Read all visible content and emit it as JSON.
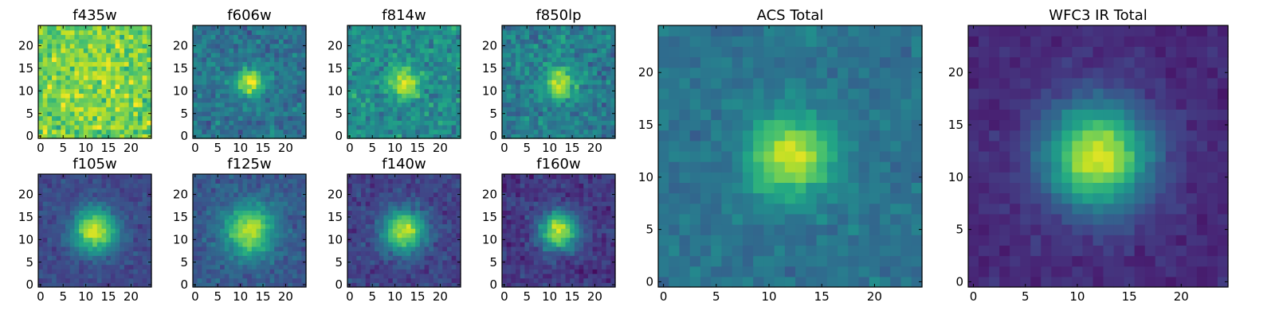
{
  "figure": {
    "description_free": true
  },
  "chart_data": [
    {
      "type": "heatmap",
      "title": "f435w",
      "xlim": [
        0,
        24
      ],
      "ylim": [
        0,
        24
      ],
      "xticks": [
        0,
        5,
        10,
        15,
        20
      ],
      "yticks": [
        0,
        5,
        10,
        15,
        20
      ],
      "peak": [
        12,
        12
      ],
      "sigma": 6.0,
      "amplitude": 0.05,
      "background": 0.78,
      "noise": 0.14,
      "colormap": "viridis"
    },
    {
      "type": "heatmap",
      "title": "f606w",
      "xlim": [
        0,
        24
      ],
      "ylim": [
        0,
        24
      ],
      "xticks": [
        0,
        5,
        10,
        15,
        20
      ],
      "yticks": [
        0,
        5,
        10,
        15,
        20
      ],
      "peak": [
        12,
        12
      ],
      "sigma": 2.2,
      "amplitude": 0.55,
      "background": 0.38,
      "noise": 0.1,
      "colormap": "viridis"
    },
    {
      "type": "heatmap",
      "title": "f814w",
      "xlim": [
        0,
        24
      ],
      "ylim": [
        0,
        24
      ],
      "xticks": [
        0,
        5,
        10,
        15,
        20
      ],
      "yticks": [
        0,
        5,
        10,
        15,
        20
      ],
      "peak": [
        12,
        12
      ],
      "sigma": 2.3,
      "amplitude": 0.45,
      "background": 0.48,
      "noise": 0.12,
      "colormap": "viridis"
    },
    {
      "type": "heatmap",
      "title": "f850lp",
      "xlim": [
        0,
        24
      ],
      "ylim": [
        0,
        24
      ],
      "xticks": [
        0,
        5,
        10,
        15,
        20
      ],
      "yticks": [
        0,
        5,
        10,
        15,
        20
      ],
      "peak": [
        12,
        12
      ],
      "sigma": 2.5,
      "amplitude": 0.5,
      "background": 0.42,
      "noise": 0.12,
      "colormap": "viridis"
    },
    {
      "type": "heatmap",
      "title": "f105w",
      "xlim": [
        0,
        24
      ],
      "ylim": [
        0,
        24
      ],
      "xticks": [
        0,
        5,
        10,
        15,
        20
      ],
      "yticks": [
        0,
        5,
        10,
        15,
        20
      ],
      "peak": [
        12,
        12
      ],
      "sigma": 3.4,
      "amplitude": 0.72,
      "background": 0.22,
      "noise": 0.06,
      "colormap": "viridis"
    },
    {
      "type": "heatmap",
      "title": "f125w",
      "xlim": [
        0,
        24
      ],
      "ylim": [
        0,
        24
      ],
      "xticks": [
        0,
        5,
        10,
        15,
        20
      ],
      "yticks": [
        0,
        5,
        10,
        15,
        20
      ],
      "peak": [
        12,
        12
      ],
      "sigma": 3.8,
      "amplitude": 0.62,
      "background": 0.28,
      "noise": 0.07,
      "colormap": "viridis"
    },
    {
      "type": "heatmap",
      "title": "f140w",
      "xlim": [
        0,
        24
      ],
      "ylim": [
        0,
        24
      ],
      "xticks": [
        0,
        5,
        10,
        15,
        20
      ],
      "yticks": [
        0,
        5,
        10,
        15,
        20
      ],
      "peak": [
        12,
        12
      ],
      "sigma": 3.2,
      "amplitude": 0.72,
      "background": 0.2,
      "noise": 0.07,
      "colormap": "viridis"
    },
    {
      "type": "heatmap",
      "title": "f160w",
      "xlim": [
        0,
        24
      ],
      "ylim": [
        0,
        24
      ],
      "xticks": [
        0,
        5,
        10,
        15,
        20
      ],
      "yticks": [
        0,
        5,
        10,
        15,
        20
      ],
      "peak": [
        12,
        12
      ],
      "sigma": 3.0,
      "amplitude": 0.75,
      "background": 0.16,
      "noise": 0.07,
      "colormap": "viridis"
    },
    {
      "type": "heatmap",
      "title": "ACS Total",
      "xlim": [
        0,
        24
      ],
      "ylim": [
        0,
        24
      ],
      "xticks": [
        0,
        5,
        10,
        15,
        20
      ],
      "yticks": [
        0,
        5,
        10,
        15,
        20
      ],
      "peak": [
        12,
        12
      ],
      "sigma": 2.6,
      "amplitude": 0.58,
      "background": 0.38,
      "noise": 0.06,
      "colormap": "viridis"
    },
    {
      "type": "heatmap",
      "title": "WFC3 IR Total",
      "xlim": [
        0,
        24
      ],
      "ylim": [
        0,
        24
      ],
      "xticks": [
        0,
        5,
        10,
        15,
        20
      ],
      "yticks": [
        0,
        5,
        10,
        15,
        20
      ],
      "peak": [
        12,
        12
      ],
      "sigma": 3.5,
      "amplitude": 0.82,
      "background": 0.12,
      "noise": 0.04,
      "colormap": "viridis"
    }
  ]
}
